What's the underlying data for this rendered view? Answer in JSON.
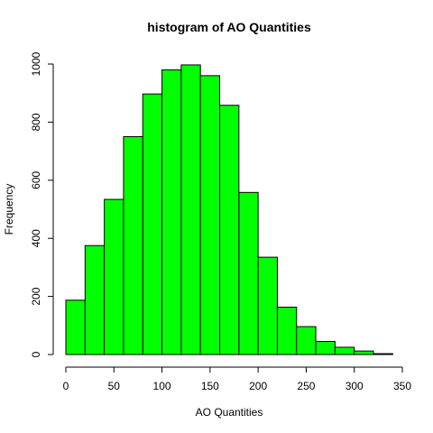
{
  "chart_data": {
    "type": "bar",
    "title": "histogram of AO Quantities",
    "xlabel": "AO Quantities",
    "ylabel": "Frequency",
    "bin_width": 20,
    "bins": [
      {
        "start": 0,
        "end": 20,
        "count": 187
      },
      {
        "start": 20,
        "end": 40,
        "count": 375
      },
      {
        "start": 40,
        "end": 60,
        "count": 534
      },
      {
        "start": 60,
        "end": 80,
        "count": 750
      },
      {
        "start": 80,
        "end": 100,
        "count": 897
      },
      {
        "start": 100,
        "end": 120,
        "count": 980
      },
      {
        "start": 120,
        "end": 140,
        "count": 997
      },
      {
        "start": 140,
        "end": 160,
        "count": 960
      },
      {
        "start": 160,
        "end": 180,
        "count": 858
      },
      {
        "start": 180,
        "end": 200,
        "count": 558
      },
      {
        "start": 200,
        "end": 220,
        "count": 335
      },
      {
        "start": 220,
        "end": 240,
        "count": 163
      },
      {
        "start": 240,
        "end": 260,
        "count": 96
      },
      {
        "start": 260,
        "end": 280,
        "count": 45
      },
      {
        "start": 280,
        "end": 300,
        "count": 25
      },
      {
        "start": 300,
        "end": 320,
        "count": 12
      },
      {
        "start": 320,
        "end": 340,
        "count": 3
      }
    ],
    "xlim": [
      0,
      350
    ],
    "ylim": [
      0,
      1000
    ],
    "xticks": [
      "0",
      "50",
      "100",
      "150",
      "200",
      "250",
      "300",
      "350"
    ],
    "yticks": [
      "0",
      "200",
      "400",
      "600",
      "800",
      "1000"
    ],
    "grid": false,
    "bar_color": "#00ff00",
    "edge_color": "#000000"
  }
}
